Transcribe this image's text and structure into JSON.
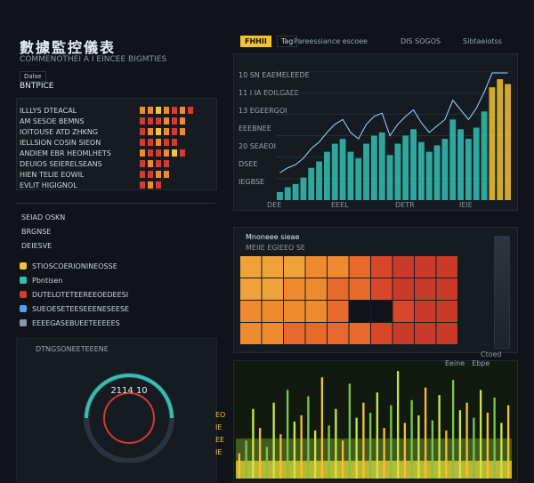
{
  "header": {
    "cjk_title": "數據監控儀表",
    "subtitle": "COMMENOTHEI A I EINCEE BIGMTIES",
    "tab_active": "Dalse",
    "tab_label": "BNTPICE"
  },
  "topbar": {
    "badge": "FHHII",
    "badge_secondary": "Tag",
    "nav_a": "Pareessiance escoee",
    "nav_b": "DIS SOGOS",
    "nav_c": "Sibtaeiotss"
  },
  "left_list": {
    "rows": [
      {
        "label": "ILLLYS DTEACAL"
      },
      {
        "label": "AM SESOE BEMNS"
      },
      {
        "label": "IOITOUSE ATD ZHKNG"
      },
      {
        "label": "IELLSION COSIN SIEON"
      },
      {
        "label": "ANDIEM EBR HEOMLHETS"
      },
      {
        "label": "DEUIOS SEIERELSEANS"
      },
      {
        "label": "HIEN TELIE EOWIL"
      },
      {
        "label": "EVLIT HIGIGNOL"
      }
    ],
    "section_a": "SEIAD OSKN",
    "section_b": "BRGNSE",
    "section_c": "DEIESVE",
    "menu": [
      {
        "label": "STIOSCOERIONINEOSSE"
      },
      {
        "label": "Pbntisen"
      },
      {
        "label": "DUTELOTETEEREEOEDEESI"
      },
      {
        "label": "SUEOESETEESEEENESEESE"
      },
      {
        "label": "EEEEGASEBUEETEEEEES"
      }
    ],
    "footer_label": "DTNGSONEETEEENE",
    "gauge_value": "2114 10"
  },
  "top_chart": {
    "labels": [
      "10 SN EAEMELEEDE",
      "11 I IA EOILGAEE",
      "13 EGEERGOI",
      "EEEBNEE",
      "20 SEAEOI",
      "DSEE",
      "IEGBSE"
    ],
    "x_ticks": [
      "DEE",
      "EEEL",
      "DETR",
      "IEIE"
    ]
  },
  "heatmap": {
    "title": "Mnoneee sieae",
    "subtitle": "MEIIE EGIEEO SE",
    "legend_label": "Ctoed"
  },
  "bottom_chart": {
    "labels": [
      "EO",
      "IE",
      "EE",
      "IE"
    ],
    "legend": [
      "Eeine",
      "Ebpe"
    ]
  },
  "colors": {
    "bg": "#101418",
    "panel": "#161b21",
    "accent_yellow": "#f2c230",
    "accent_teal": "#32c1b1",
    "accent_red": "#d23b2e",
    "accent_orange": "#f08a2f"
  },
  "chart_data": [
    {
      "type": "area",
      "x": [
        1,
        2,
        3,
        4,
        5,
        6,
        7,
        8,
        9,
        10,
        11,
        12,
        13,
        14,
        15,
        16,
        17,
        18,
        19,
        20,
        21,
        22,
        23,
        24,
        25,
        26,
        27,
        28,
        29,
        30
      ],
      "values": [
        5,
        8,
        10,
        14,
        20,
        24,
        30,
        35,
        38,
        30,
        26,
        35,
        40,
        42,
        28,
        35,
        40,
        44,
        36,
        30,
        34,
        38,
        50,
        44,
        38,
        45,
        55,
        70,
        75,
        72
      ]
    },
    {
      "type": "heatmap",
      "values": [
        [
          0.2,
          0.3,
          0.3,
          0.4,
          0.5,
          0.6,
          0.8,
          0.9,
          0.9,
          0.95
        ],
        [
          0.3,
          0.3,
          0.4,
          0.5,
          0.6,
          0.7,
          0.8,
          0.9,
          0.9,
          0.95
        ],
        [
          0.4,
          0.4,
          0.5,
          0.5,
          0.6,
          0.7,
          0.8,
          0.8,
          0.9,
          0.9
        ],
        [
          0.5,
          0.5,
          0.6,
          0.6,
          0.7,
          0.7,
          0.8,
          0.9,
          0.95,
          0.9
        ]
      ]
    },
    {
      "type": "bar",
      "values": [
        20,
        30,
        55,
        40,
        25,
        60,
        35,
        70,
        45,
        50,
        65,
        38,
        80,
        42,
        55,
        30,
        75,
        48,
        60,
        52,
        68,
        40,
        58,
        85,
        44,
        62,
        50,
        72,
        46,
        66,
        38,
        78,
        54,
        60,
        48,
        70,
        52,
        64,
        44,
        58
      ]
    }
  ]
}
